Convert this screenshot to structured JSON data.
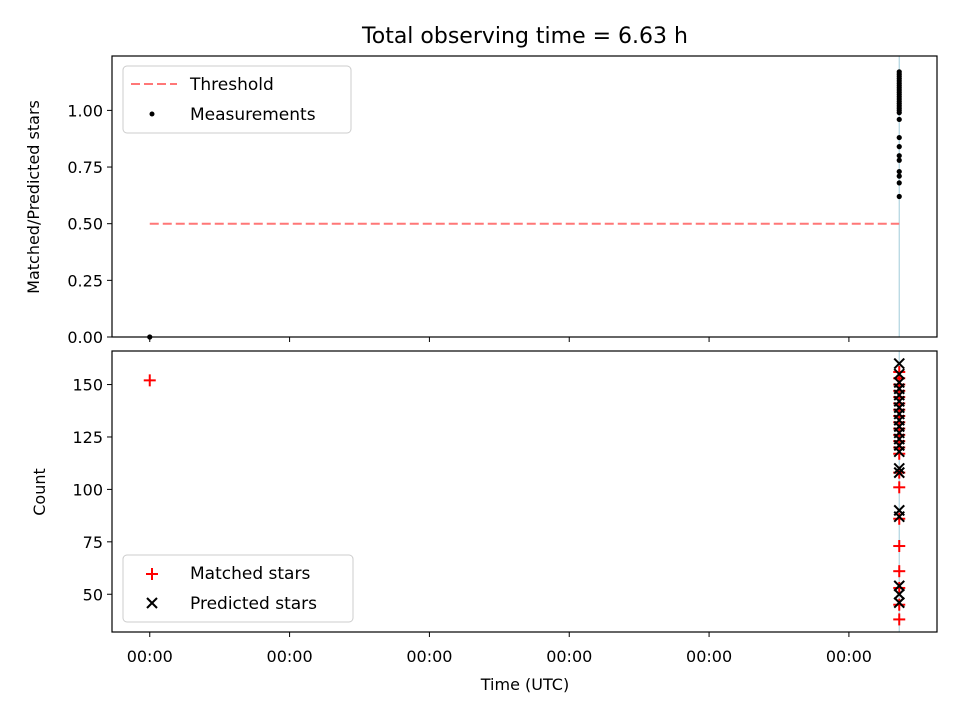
{
  "chart_data": [
    {
      "type": "scatter",
      "title": "Total observing time = 6.63 h",
      "xlabel": "",
      "ylabel": "Matched/Predicted stars",
      "x_tick_labels": [
        "00:00",
        "00:00",
        "00:00",
        "00:00",
        "00:00",
        "00:00"
      ],
      "y_ticks": [
        0.0,
        0.25,
        0.5,
        0.75,
        1.0
      ],
      "y_tick_labels": [
        "0.00",
        "0.25",
        "0.50",
        "0.75",
        "1.00"
      ],
      "ylim": [
        0.0,
        1.24
      ],
      "xlim": [
        -0.27,
        5.63
      ],
      "legend_position": "upper-left",
      "threshold": {
        "name": "Threshold",
        "value": 0.5,
        "x_range": [
          0.0,
          5.36
        ],
        "color": "#ff7777"
      },
      "measurements": {
        "name": "Measurements",
        "color": "#000000",
        "points": [
          [
            0.0,
            0.0
          ],
          [
            5.36,
            0.62
          ],
          [
            5.36,
            0.68
          ],
          [
            5.36,
            0.71
          ],
          [
            5.36,
            0.73
          ],
          [
            5.36,
            0.78
          ],
          [
            5.36,
            0.8
          ],
          [
            5.36,
            0.84
          ],
          [
            5.36,
            0.88
          ],
          [
            5.36,
            0.96
          ],
          [
            5.36,
            0.99
          ],
          [
            5.36,
            1.0
          ],
          [
            5.36,
            1.01
          ],
          [
            5.36,
            1.02
          ],
          [
            5.36,
            1.03
          ],
          [
            5.36,
            1.04
          ],
          [
            5.36,
            1.05
          ],
          [
            5.36,
            1.06
          ],
          [
            5.36,
            1.07
          ],
          [
            5.36,
            1.08
          ],
          [
            5.36,
            1.09
          ],
          [
            5.36,
            1.1
          ],
          [
            5.36,
            1.11
          ],
          [
            5.36,
            1.12
          ],
          [
            5.36,
            1.13
          ],
          [
            5.36,
            1.14
          ],
          [
            5.36,
            1.15
          ],
          [
            5.36,
            1.16
          ],
          [
            5.36,
            1.17
          ]
        ]
      },
      "vline": {
        "x": 5.36,
        "color": "#b0d4e0"
      }
    },
    {
      "type": "scatter",
      "title": "",
      "xlabel": "Time (UTC)",
      "ylabel": "Count",
      "x_tick_labels": [
        "00:00",
        "00:00",
        "00:00",
        "00:00",
        "00:00",
        "00:00"
      ],
      "y_ticks": [
        50,
        75,
        100,
        125,
        150
      ],
      "y_tick_labels": [
        "50",
        "75",
        "100",
        "125",
        "150"
      ],
      "ylim": [
        32,
        166
      ],
      "xlim": [
        -0.27,
        5.63
      ],
      "legend_position": "lower-left",
      "series": [
        {
          "name": "Matched stars",
          "marker": "plus",
          "color": "#ff0000",
          "points": [
            [
              0.0,
              152
            ],
            [
              5.36,
              38
            ],
            [
              5.36,
              45
            ],
            [
              5.36,
              53
            ],
            [
              5.36,
              61
            ],
            [
              5.36,
              73
            ],
            [
              5.36,
              86
            ],
            [
              5.36,
              101
            ],
            [
              5.36,
              108
            ],
            [
              5.36,
              117
            ],
            [
              5.36,
              120
            ],
            [
              5.36,
              123
            ],
            [
              5.36,
              126
            ],
            [
              5.36,
              129
            ],
            [
              5.36,
              132
            ],
            [
              5.36,
              135
            ],
            [
              5.36,
              138
            ],
            [
              5.36,
              141
            ],
            [
              5.36,
              144
            ],
            [
              5.36,
              147
            ],
            [
              5.36,
              150
            ],
            [
              5.36,
              153
            ],
            [
              5.36,
              156
            ]
          ]
        },
        {
          "name": "Predicted stars",
          "marker": "x",
          "color": "#000000",
          "points": [
            [
              5.36,
              46
            ],
            [
              5.36,
              50
            ],
            [
              5.36,
              54
            ],
            [
              5.36,
              87
            ],
            [
              5.36,
              90
            ],
            [
              5.36,
              108
            ],
            [
              5.36,
              110
            ],
            [
              5.36,
              118
            ],
            [
              5.36,
              121
            ],
            [
              5.36,
              124
            ],
            [
              5.36,
              127
            ],
            [
              5.36,
              130
            ],
            [
              5.36,
              133
            ],
            [
              5.36,
              136
            ],
            [
              5.36,
              139
            ],
            [
              5.36,
              142
            ],
            [
              5.36,
              145
            ],
            [
              5.36,
              148
            ],
            [
              5.36,
              151
            ],
            [
              5.36,
              155
            ],
            [
              5.36,
              160
            ]
          ]
        }
      ],
      "vline": {
        "x": 5.36,
        "color": "#b0d4e0"
      }
    }
  ]
}
